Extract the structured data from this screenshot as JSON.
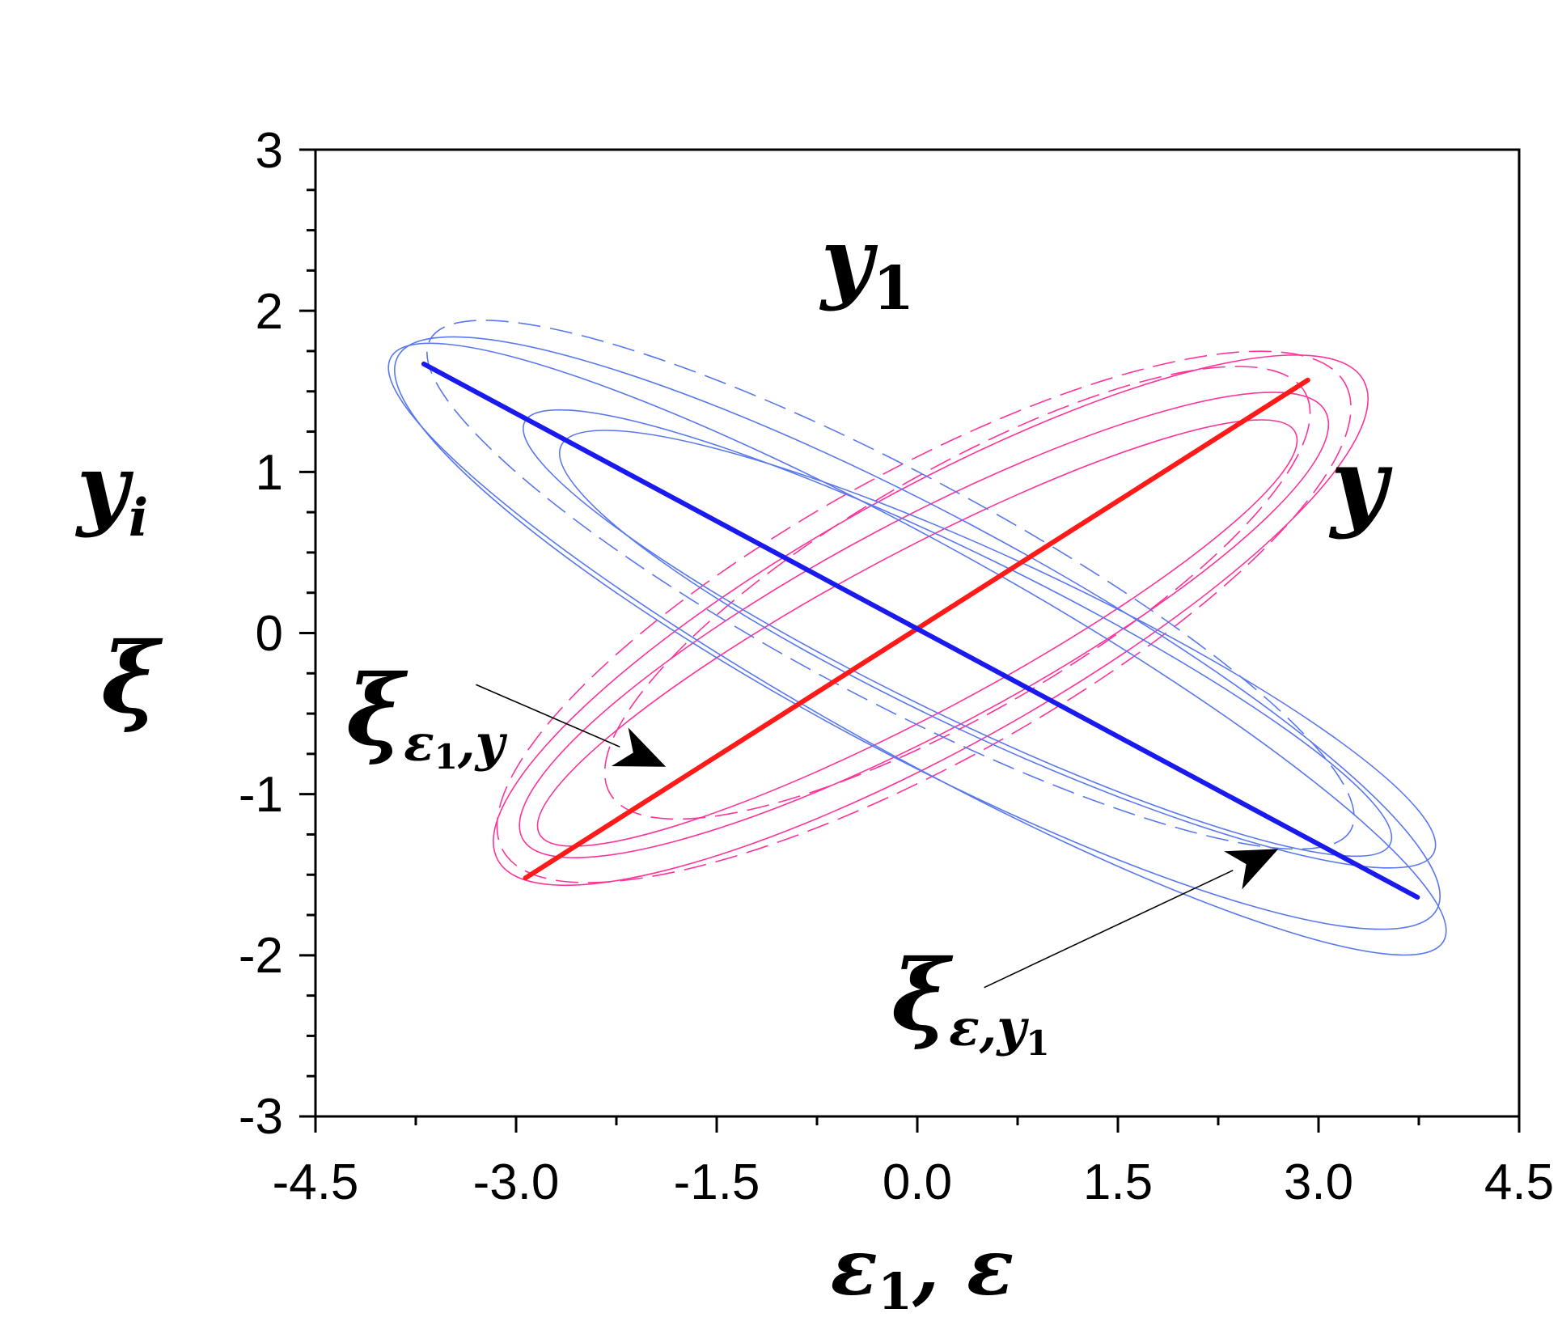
{
  "chart_data": {
    "type": "line",
    "xlabel": {
      "main": "ε",
      "sub": "1",
      "tail": ", ε"
    },
    "ylabel": {
      "line1_main": "y",
      "line1_sub": "i",
      "line2": "ξ"
    },
    "xlim": [
      -4.5,
      4.5
    ],
    "ylim": [
      -3,
      3
    ],
    "xticks": [
      "-4.5",
      "-3.0",
      "-1.5",
      "0.0",
      "1.5",
      "3.0",
      "4.5"
    ],
    "yticks": [
      "3",
      "2",
      "1",
      "0",
      "-1",
      "-2",
      "-3"
    ],
    "grid": false,
    "colors": {
      "y": "#ff1a1a",
      "y1": "#1a1aee",
      "xi_eps1_y": "#ff3399",
      "xi_eps_y1": "#5a78ee"
    },
    "annotations": {
      "y1_label": {
        "main": "y",
        "sub": "1"
      },
      "y_label": {
        "main": "y"
      },
      "xi_eps1_y_label": {
        "main": "ξ",
        "sub_a": "ε",
        "sub_a_idx": "1",
        "sub_b": ",y"
      },
      "xi_eps_y1_label": {
        "main": "ξ",
        "sub_a": "ε,",
        "sub_b": "y",
        "sub_b_idx": "1"
      }
    },
    "series": [
      {
        "id": "y",
        "style": "thick-solid",
        "x": [
          -2.93,
          2.92
        ],
        "y": [
          -1.52,
          1.57
        ]
      },
      {
        "id": "y1",
        "style": "thick-solid",
        "x": [
          -3.69,
          3.74
        ],
        "y": [
          1.67,
          -1.64
        ]
      }
    ],
    "ellipses": [
      {
        "group": "xi_eps1_y",
        "cx": 0.0,
        "cy": 0.0,
        "rx": 3.2,
        "ry": 0.5,
        "angle": 28,
        "dash": false
      },
      {
        "group": "xi_eps1_y",
        "cx": 0.05,
        "cy": 0.05,
        "rx": 3.4,
        "ry": 0.65,
        "angle": 28,
        "dash": false
      },
      {
        "group": "xi_eps1_y",
        "cx": 0.1,
        "cy": 0.08,
        "rx": 3.7,
        "ry": 0.8,
        "angle": 29,
        "dash": false
      },
      {
        "group": "xi_eps1_y",
        "cx": 0.05,
        "cy": 0.1,
        "rx": 3.6,
        "ry": 0.9,
        "angle": 29,
        "dash": true
      },
      {
        "group": "xi_eps1_y",
        "cx": 0.3,
        "cy": 0.25,
        "rx": 3.0,
        "ry": 0.75,
        "angle": 30,
        "dash": true
      },
      {
        "group": "xi_eps_y1",
        "cx": 0.3,
        "cy": 0.0,
        "rx": 3.6,
        "ry": 0.5,
        "angle": -26,
        "dash": false
      },
      {
        "group": "xi_eps_y1",
        "cx": 0.0,
        "cy": -0.1,
        "rx": 4.5,
        "ry": 0.65,
        "angle": -29,
        "dash": false
      },
      {
        "group": "xi_eps_y1",
        "cx": 0.0,
        "cy": 0.0,
        "rx": 4.4,
        "ry": 0.75,
        "angle": -28,
        "dash": false
      },
      {
        "group": "xi_eps_y1",
        "cx": -0.2,
        "cy": 0.3,
        "rx": 3.9,
        "ry": 0.7,
        "angle": -28,
        "dash": true
      },
      {
        "group": "xi_eps_y1",
        "cx": 0.6,
        "cy": -0.1,
        "rx": 3.6,
        "ry": 0.55,
        "angle": -25,
        "dash": false
      }
    ],
    "arrows": [
      {
        "from": [
          -3.3,
          -0.32
        ],
        "to": [
          -1.88,
          -0.83
        ]
      },
      {
        "from": [
          0.5,
          -2.2
        ],
        "to": [
          2.7,
          -1.34
        ]
      }
    ]
  }
}
